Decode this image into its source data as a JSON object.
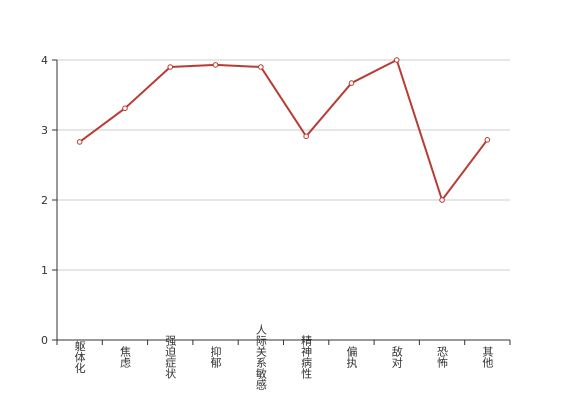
{
  "chart_data": {
    "type": "line",
    "categories": [
      "躯体化",
      "焦虑",
      "强迫症状",
      "抑郁",
      "人际关系敏感",
      "精神病性",
      "偏执",
      "敌对",
      "恐怖",
      "其他"
    ],
    "series": [
      {
        "color": "#b83b34",
        "values": [
          2.83,
          3.31,
          3.9,
          3.93,
          3.9,
          2.91,
          3.67,
          4.0,
          2.0,
          2.86
        ]
      }
    ],
    "ylim": [
      0,
      4
    ],
    "yticks": [
      0,
      1,
      2,
      3,
      4
    ],
    "grid": true
  }
}
